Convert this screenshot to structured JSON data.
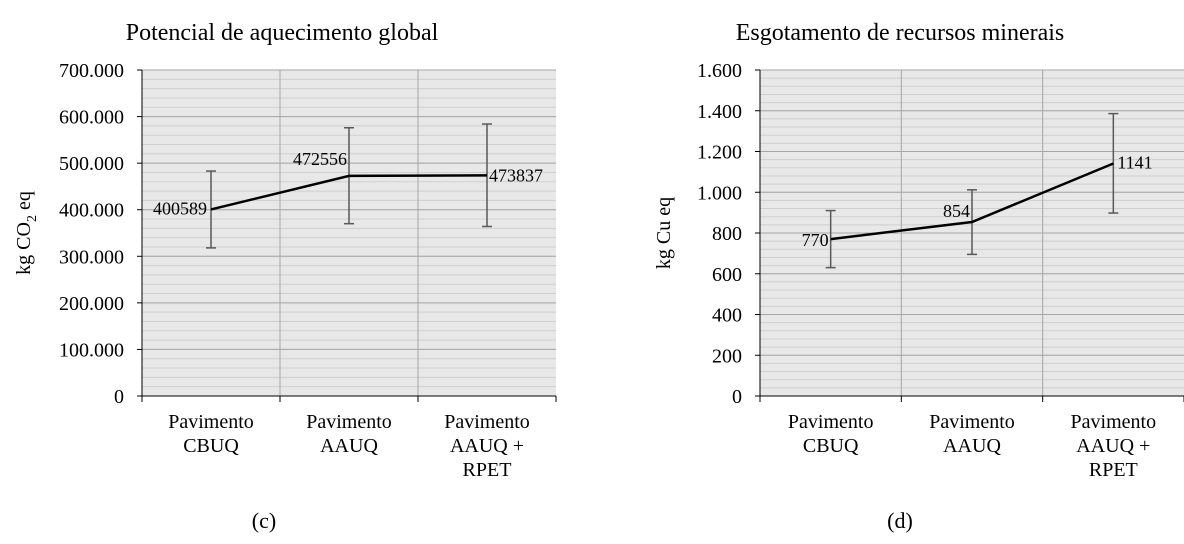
{
  "chart_data": [
    {
      "type": "line",
      "title": "Potencial de aquecimento global",
      "ylabel_main": "kg CO",
      "ylabel_sub": "2",
      "ylabel_tail": " eq",
      "panel_label": "(c)",
      "categories": [
        [
          "Pavimento",
          "CBUQ"
        ],
        [
          "Pavimento",
          "AAUQ"
        ],
        [
          "Pavimento",
          "AAUQ +",
          "RPET"
        ]
      ],
      "values": [
        400589,
        472556,
        473837
      ],
      "data_labels": [
        "400589",
        "472556",
        "473837"
      ],
      "error_low": [
        318000,
        370000,
        364000
      ],
      "error_high": [
        483000,
        576000,
        584000
      ],
      "ylim": [
        0,
        700000
      ],
      "yticks": [
        0,
        100000,
        200000,
        300000,
        400000,
        500000,
        600000,
        700000
      ],
      "ytick_labels": [
        "0",
        "100.000",
        "200.000",
        "300.000",
        "400.000",
        "500.000",
        "600.000",
        "700.000"
      ],
      "minor_step": 20000,
      "grid": true
    },
    {
      "type": "line",
      "title": "Esgotamento de recursos minerais",
      "ylabel_main": "kg Cu eq",
      "ylabel_sub": "",
      "ylabel_tail": "",
      "panel_label": "(d)",
      "categories": [
        [
          "Pavimento",
          "CBUQ"
        ],
        [
          "Pavimento",
          "AAUQ"
        ],
        [
          "Pavimento",
          "AAUQ +",
          "RPET"
        ]
      ],
      "values": [
        770,
        854,
        1141
      ],
      "data_labels": [
        "770",
        "854",
        "1141"
      ],
      "error_low": [
        630,
        695,
        898
      ],
      "error_high": [
        910,
        1012,
        1386
      ],
      "ylim": [
        0,
        1600
      ],
      "yticks": [
        0,
        200,
        400,
        600,
        800,
        1000,
        1200,
        1400,
        1600
      ],
      "ytick_labels": [
        "0",
        "200",
        "400",
        "600",
        "800",
        "1.000",
        "1.200",
        "1.400",
        "1.600"
      ],
      "minor_step": 40,
      "grid": true
    }
  ],
  "colors": {
    "plot_bg": "#e8e8e8",
    "minor_grid": "#cfcfcf",
    "major_grid": "#a6a6a6",
    "line": "#000000",
    "error_bar": "#595959"
  }
}
